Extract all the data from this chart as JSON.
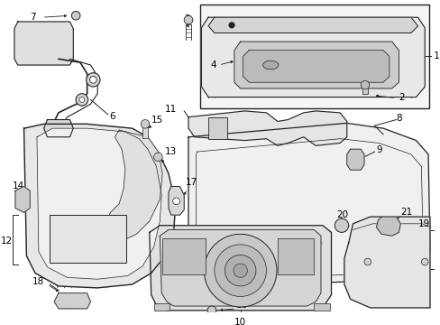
{
  "background_color": "#ffffff",
  "line_color": "#222222",
  "text_color": "#000000",
  "fill_light": "#f0f0f0",
  "fill_mid": "#e0e0e0",
  "fill_dark": "#c8c8c8",
  "figsize": [
    4.89,
    3.6
  ],
  "dpi": 100
}
